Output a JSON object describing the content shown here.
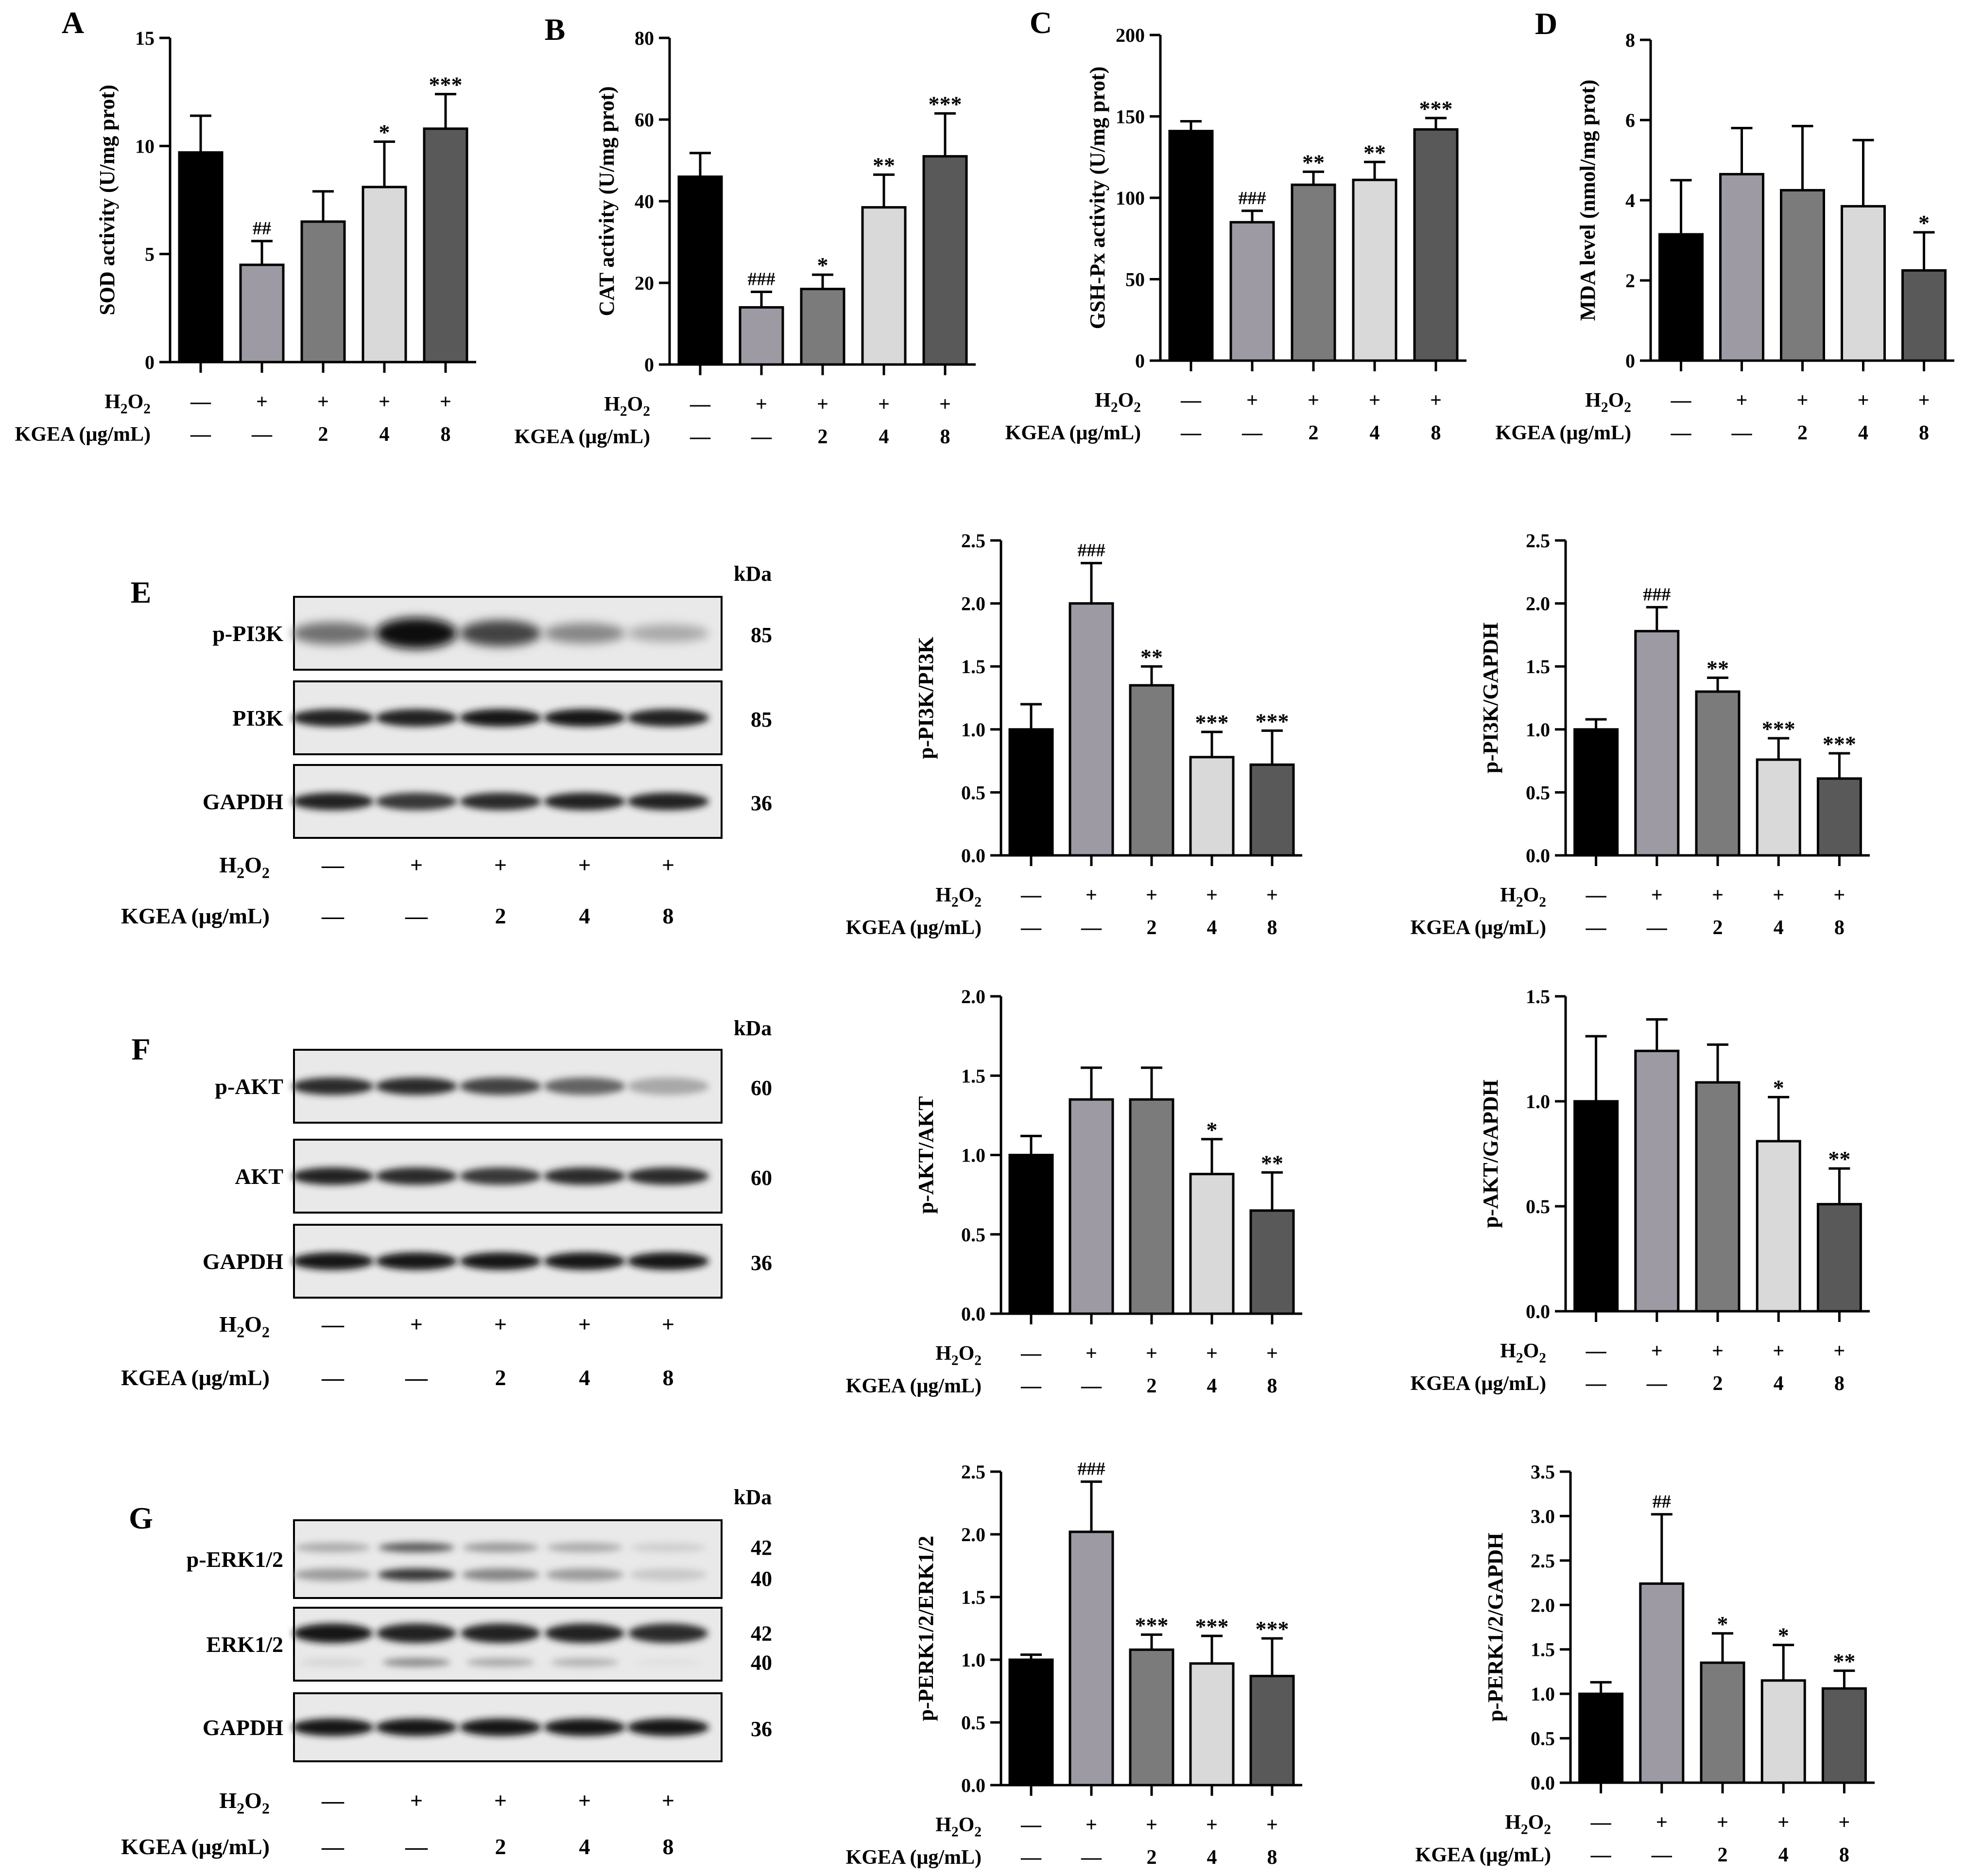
{
  "figure": {
    "treatment_row_label": "H2O2",
    "dose_row_label": "KGEA (μg/mL)",
    "h2o2_signs": [
      "—",
      "+",
      "+",
      "+",
      "+"
    ],
    "kgea_doses": [
      "—",
      "—",
      "2",
      "4",
      "8"
    ],
    "kda_label": "kDa",
    "bar_fills": [
      "#000000",
      "#9d9aa3",
      "#7b7b7b",
      "#d9d9d9",
      "#595959"
    ]
  },
  "blots": [
    {
      "letter": "E",
      "rows": [
        {
          "label": "p-PI3K",
          "kda": [
            "85"
          ],
          "bands": [
            0.55,
            1.0,
            0.75,
            0.45,
            0.3
          ],
          "style": "strong"
        },
        {
          "label": "PI3K",
          "kda": [
            "85"
          ],
          "bands": [
            0.9,
            0.9,
            0.95,
            0.95,
            0.9
          ],
          "style": "normal"
        },
        {
          "label": "GAPDH",
          "kda": [
            "36"
          ],
          "bands": [
            0.9,
            0.8,
            0.85,
            0.9,
            0.9
          ],
          "style": "normal"
        }
      ]
    },
    {
      "letter": "F",
      "rows": [
        {
          "label": "p-AKT",
          "kda": [
            "60"
          ],
          "bands": [
            0.85,
            0.85,
            0.75,
            0.6,
            0.3
          ],
          "style": "normal"
        },
        {
          "label": "AKT",
          "kda": [
            "60"
          ],
          "bands": [
            0.9,
            0.85,
            0.8,
            0.85,
            0.85
          ],
          "style": "normal"
        },
        {
          "label": "GAPDH",
          "kda": [
            "36"
          ],
          "bands": [
            0.95,
            0.95,
            0.95,
            0.95,
            0.95
          ],
          "style": "normal"
        }
      ]
    },
    {
      "letter": "G",
      "rows": [
        {
          "label": "p-ERK1/2",
          "kda": [
            "42",
            "40"
          ],
          "bands": [
            0.35,
            0.8,
            0.45,
            0.35,
            0.15
          ],
          "style": "double"
        },
        {
          "label": "ERK1/2",
          "kda": [
            "42",
            "40"
          ],
          "bands": [
            0.95,
            0.9,
            0.9,
            0.9,
            0.85
          ],
          "style": "doubleLower"
        },
        {
          "label": "GAPDH",
          "kda": [
            "36"
          ],
          "bands": [
            0.95,
            0.95,
            0.95,
            0.95,
            0.95
          ],
          "style": "normal"
        }
      ]
    }
  ],
  "chart_data": [
    {
      "id": "A",
      "letter": "A",
      "type": "bar",
      "title": "",
      "xlabel": "",
      "ylabel": "SOD activity (U/mg prot)",
      "ylim": [
        0,
        15
      ],
      "yticks": [
        "0",
        "5",
        "10",
        "15"
      ],
      "values": [
        9.7,
        4.5,
        6.5,
        8.1,
        10.8
      ],
      "errors": [
        1.7,
        1.1,
        1.4,
        2.1,
        1.6
      ],
      "annotations": [
        "",
        "##",
        "",
        "*",
        "***"
      ]
    },
    {
      "id": "B",
      "letter": "B",
      "type": "bar",
      "title": "",
      "xlabel": "",
      "ylabel": "CAT activity (U/mg prot)",
      "ylim": [
        0,
        80
      ],
      "yticks": [
        "0",
        "20",
        "40",
        "60",
        "80"
      ],
      "values": [
        46,
        14,
        18.5,
        38.5,
        51
      ],
      "errors": [
        5.8,
        3.8,
        3.5,
        8,
        10.5
      ],
      "annotations": [
        "",
        "###",
        "*",
        "**",
        "***"
      ]
    },
    {
      "id": "C",
      "letter": "C",
      "type": "bar",
      "title": "",
      "xlabel": "",
      "ylabel": "GSH-Px activity (U/mg prot)",
      "ylim": [
        0,
        200
      ],
      "yticks": [
        "0",
        "50",
        "100",
        "150",
        "200"
      ],
      "values": [
        141,
        85,
        108,
        111,
        142
      ],
      "errors": [
        6,
        7,
        8,
        11,
        7
      ],
      "annotations": [
        "",
        "###",
        "**",
        "**",
        "***"
      ]
    },
    {
      "id": "D",
      "letter": "D",
      "type": "bar",
      "title": "",
      "xlabel": "",
      "ylabel": "MDA level (nmol/mg prot)",
      "ylim": [
        0,
        8
      ],
      "yticks": [
        "0",
        "2",
        "4",
        "6",
        "8"
      ],
      "values": [
        3.15,
        4.65,
        4.25,
        3.85,
        2.25
      ],
      "errors": [
        1.35,
        1.15,
        1.6,
        1.65,
        0.95
      ],
      "annotations": [
        "",
        "",
        "",
        "",
        "*"
      ]
    },
    {
      "id": "E1",
      "type": "bar",
      "title": "",
      "xlabel": "",
      "ylabel": "p-PI3K/PI3K",
      "ylim": [
        0,
        2.5
      ],
      "yticks": [
        "0.0",
        "0.5",
        "1.0",
        "1.5",
        "2.0",
        "2.5"
      ],
      "values": [
        1.0,
        2.0,
        1.35,
        0.78,
        0.72
      ],
      "errors": [
        0.2,
        0.32,
        0.15,
        0.2,
        0.27
      ],
      "annotations": [
        "",
        "###",
        "**",
        "***",
        "***"
      ]
    },
    {
      "id": "E2",
      "type": "bar",
      "title": "",
      "xlabel": "",
      "ylabel": "p-PI3K/GAPDH",
      "ylim": [
        0,
        2.5
      ],
      "yticks": [
        "0.0",
        "0.5",
        "1.0",
        "1.5",
        "2.0",
        "2.5"
      ],
      "values": [
        1.0,
        1.78,
        1.3,
        0.76,
        0.61
      ],
      "errors": [
        0.08,
        0.19,
        0.11,
        0.17,
        0.2
      ],
      "annotations": [
        "",
        "###",
        "**",
        "***",
        "***"
      ]
    },
    {
      "id": "F1",
      "type": "bar",
      "title": "",
      "xlabel": "",
      "ylabel": "p-AKT/AKT",
      "ylim": [
        0,
        2.0
      ],
      "yticks": [
        "0.0",
        "0.5",
        "1.0",
        "1.5",
        "2.0"
      ],
      "values": [
        1.0,
        1.35,
        1.35,
        0.88,
        0.65
      ],
      "errors": [
        0.12,
        0.2,
        0.2,
        0.22,
        0.24
      ],
      "annotations": [
        "",
        "",
        "",
        "*",
        "**"
      ]
    },
    {
      "id": "F2",
      "type": "bar",
      "title": "",
      "xlabel": "",
      "ylabel": "p-AKT/GAPDH",
      "ylim": [
        0,
        1.5
      ],
      "yticks": [
        "0.0",
        "0.5",
        "1.0",
        "1.5"
      ],
      "values": [
        1.0,
        1.24,
        1.09,
        0.81,
        0.51
      ],
      "errors": [
        0.31,
        0.15,
        0.18,
        0.21,
        0.17
      ],
      "annotations": [
        "",
        "",
        "",
        "*",
        "**"
      ]
    },
    {
      "id": "G1",
      "type": "bar",
      "title": "",
      "xlabel": "",
      "ylabel": "p-PERK1/2/ERK1/2",
      "ylim": [
        0,
        2.5
      ],
      "yticks": [
        "0.0",
        "0.5",
        "1.0",
        "1.5",
        "2.0",
        "2.5"
      ],
      "values": [
        1.0,
        2.02,
        1.08,
        0.97,
        0.87
      ],
      "errors": [
        0.04,
        0.4,
        0.12,
        0.22,
        0.3
      ],
      "annotations": [
        "",
        "###",
        "***",
        "***",
        "***"
      ]
    },
    {
      "id": "G2",
      "type": "bar",
      "title": "",
      "xlabel": "",
      "ylabel": "p-PERK1/2/GAPDH",
      "ylim": [
        0,
        3.5
      ],
      "yticks": [
        "0.0",
        "0.5",
        "1.0",
        "1.5",
        "2.0",
        "2.5",
        "3.0",
        "3.5"
      ],
      "values": [
        1.0,
        2.24,
        1.35,
        1.15,
        1.06
      ],
      "errors": [
        0.13,
        0.78,
        0.33,
        0.4,
        0.2
      ],
      "annotations": [
        "",
        "##",
        "*",
        "*",
        "**"
      ]
    }
  ]
}
